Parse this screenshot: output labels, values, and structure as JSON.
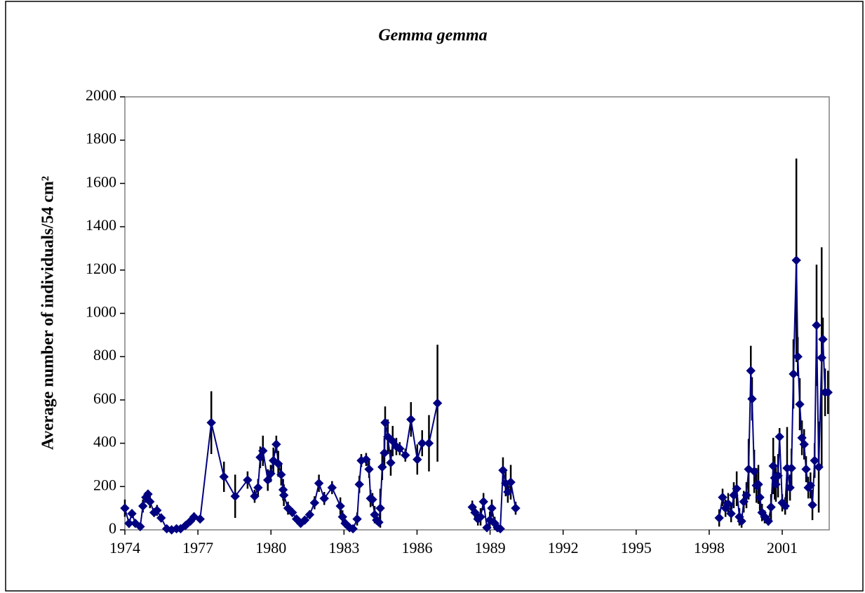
{
  "chart_data": {
    "type": "line",
    "title": "Gemma gemma",
    "ylabel": "Average number of individuals/54 cm²",
    "color": "#000080",
    "error_color": "#000000",
    "xlim": [
      1974,
      2002.93
    ],
    "xticks": [
      1974,
      1977,
      1980,
      1983,
      1986,
      1989,
      1992,
      1995,
      1998,
      2001
    ],
    "ylim": [
      0,
      2000
    ],
    "yticks": [
      0,
      200,
      400,
      600,
      800,
      1000,
      1200,
      1400,
      1600,
      1800,
      2000
    ],
    "x": [
      1974.0,
      1974.17,
      1974.29,
      1974.43,
      1974.63,
      1974.74,
      1974.86,
      1974.95,
      1975.03,
      1975.2,
      1975.32,
      1975.49,
      1975.72,
      1975.92,
      1976.12,
      1976.29,
      1976.49,
      1976.69,
      1976.84,
      1977.09,
      1977.55,
      1978.07,
      1978.53,
      1979.04,
      1979.33,
      1979.47,
      1979.56,
      1979.67,
      1979.87,
      1979.99,
      1980.1,
      1980.22,
      1980.3,
      1980.42,
      1980.5,
      1980.53,
      1980.7,
      1980.88,
      1981.05,
      1981.22,
      1981.39,
      1981.59,
      1981.79,
      1981.97,
      1982.19,
      1982.51,
      1982.85,
      1982.94,
      1983.05,
      1983.23,
      1983.37,
      1983.54,
      1983.63,
      1983.71,
      1983.91,
      1984.03,
      1984.09,
      1984.17,
      1984.26,
      1984.34,
      1984.43,
      1984.49,
      1984.57,
      1984.66,
      1984.69,
      1984.8,
      1984.92,
      1985.0,
      1985.15,
      1985.29,
      1985.52,
      1985.75,
      1986.01,
      1986.21,
      1986.49,
      1986.84,
      1987.5,
      1988.27,
      1988.38,
      1988.5,
      1988.61,
      1988.73,
      1988.87,
      1988.99,
      1989.07,
      1989.19,
      1989.3,
      1989.42,
      1989.53,
      1989.64,
      1989.73,
      1989.85,
      1990.05,
      1994,
      1998.41,
      1998.55,
      1998.67,
      1998.78,
      1998.9,
      1999.01,
      1999.13,
      1999.24,
      1999.33,
      1999.42,
      1999.53,
      1999.62,
      1999.71,
      1999.76,
      1999.85,
      1999.94,
      2000.02,
      2000.08,
      2000.17,
      2000.28,
      2000.43,
      2000.54,
      2000.63,
      2000.69,
      2000.74,
      2000.83,
      2000.89,
      2001.0,
      2001.12,
      2001.2,
      2001.32,
      2001.38,
      2001.46,
      2001.58,
      2001.64,
      2001.72,
      2001.81,
      2001.9,
      2001.98,
      2002.07,
      2002.16,
      2002.24,
      2002.33,
      2002.41,
      2002.5,
      2002.62,
      2002.67,
      2002.76,
      2002.88
    ],
    "values": [
      100,
      30,
      75,
      30,
      15,
      110,
      150,
      165,
      130,
      80,
      90,
      55,
      5,
      0,
      5,
      5,
      20,
      40,
      60,
      50,
      495,
      245,
      155,
      230,
      155,
      195,
      335,
      365,
      230,
      260,
      320,
      395,
      305,
      255,
      185,
      160,
      100,
      80,
      50,
      30,
      45,
      70,
      125,
      215,
      145,
      195,
      110,
      60,
      30,
      10,
      5,
      50,
      210,
      320,
      325,
      280,
      145,
      140,
      70,
      45,
      35,
      100,
      290,
      355,
      495,
      430,
      310,
      410,
      385,
      375,
      345,
      510,
      325,
      400,
      400,
      585,
      null,
      105,
      80,
      50,
      60,
      130,
      10,
      45,
      100,
      30,
      10,
      5,
      275,
      215,
      175,
      220,
      100,
      null,
      55,
      150,
      100,
      120,
      75,
      160,
      190,
      60,
      40,
      130,
      160,
      280,
      735,
      605,
      270,
      205,
      210,
      150,
      80,
      60,
      40,
      105,
      295,
      240,
      210,
      250,
      430,
      125,
      110,
      285,
      195,
      285,
      720,
      1245,
      800,
      580,
      425,
      395,
      280,
      195,
      205,
      115,
      320,
      945,
      290,
      795,
      880,
      635,
      635
    ],
    "errors": [
      40,
      20,
      20,
      15,
      10,
      30,
      25,
      20,
      30,
      20,
      25,
      20,
      5,
      3,
      5,
      5,
      10,
      15,
      20,
      15,
      145,
      70,
      100,
      40,
      30,
      40,
      50,
      70,
      50,
      40,
      60,
      40,
      60,
      50,
      50,
      50,
      30,
      20,
      15,
      10,
      15,
      20,
      30,
      40,
      30,
      30,
      40,
      30,
      20,
      10,
      5,
      30,
      40,
      30,
      30,
      40,
      40,
      30,
      40,
      20,
      15,
      90,
      60,
      70,
      75,
      80,
      60,
      70,
      40,
      30,
      30,
      80,
      70,
      60,
      130,
      270,
      null,
      30,
      30,
      30,
      40,
      40,
      10,
      40,
      40,
      30,
      10,
      5,
      60,
      60,
      50,
      80,
      30,
      null,
      40,
      40,
      40,
      50,
      40,
      60,
      80,
      40,
      30,
      50,
      60,
      140,
      115,
      100,
      100,
      80,
      90,
      60,
      40,
      30,
      20,
      60,
      130,
      100,
      80,
      100,
      40,
      40,
      40,
      190,
      60,
      90,
      160,
      470,
      90,
      120,
      80,
      70,
      60,
      50,
      60,
      70,
      80,
      280,
      210,
      510,
      100,
      110,
      100
    ]
  }
}
